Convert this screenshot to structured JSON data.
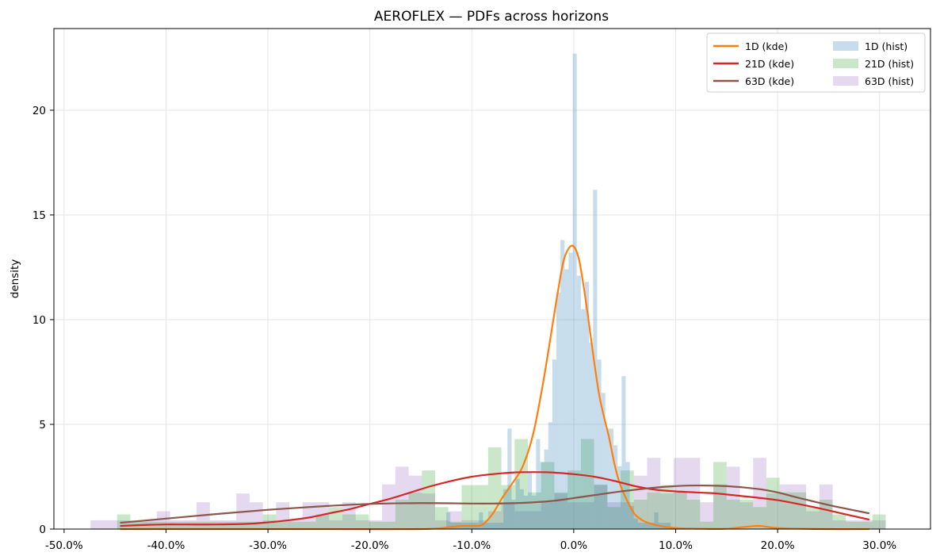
{
  "chart_data": {
    "type": "histogram+line",
    "title": "AEROFLEX — PDFs across horizons",
    "xlabel": "",
    "ylabel": "density",
    "xlim": [
      -0.51,
      0.35
    ],
    "ylim": [
      0,
      23.9
    ],
    "x_ticks": [
      -0.5,
      -0.4,
      -0.3,
      -0.2,
      -0.1,
      0.0,
      0.1,
      0.2,
      0.3
    ],
    "x_tick_labels": [
      "-50.0%",
      "-40.0%",
      "-30.0%",
      "-20.0%",
      "-10.0%",
      "0.0%",
      "10.0%",
      "20.0%",
      "30.0%"
    ],
    "y_ticks": [
      0,
      5,
      10,
      15,
      20
    ],
    "y_tick_labels": [
      "0",
      "5",
      "10",
      "15",
      "20"
    ],
    "grid": true,
    "legend_position": "top-right",
    "legend": [
      "1D (kde)",
      "21D (kde)",
      "63D (kde)",
      "1D (hist)",
      "21D (hist)",
      "63D (hist)"
    ],
    "histograms": [
      {
        "name": "63D (hist)",
        "color": "#9467bd",
        "opacity": 0.25,
        "bins": [
          [
            -0.474,
            -0.461,
            0.42
          ],
          [
            -0.461,
            -0.448,
            0.42
          ],
          [
            -0.448,
            -0.435,
            0.42
          ],
          [
            -0.435,
            -0.422,
            0.42
          ],
          [
            -0.422,
            -0.409,
            0.42
          ],
          [
            -0.409,
            -0.396,
            0.85
          ],
          [
            -0.396,
            -0.383,
            0.42
          ],
          [
            -0.383,
            -0.37,
            0.42
          ],
          [
            -0.37,
            -0.357,
            1.28
          ],
          [
            -0.357,
            -0.344,
            0.42
          ],
          [
            -0.344,
            -0.331,
            0.42
          ],
          [
            -0.331,
            -0.318,
            1.7
          ],
          [
            -0.318,
            -0.305,
            1.28
          ],
          [
            -0.305,
            -0.292,
            0.42
          ],
          [
            -0.292,
            -0.279,
            1.28
          ],
          [
            -0.279,
            -0.266,
            0.42
          ],
          [
            -0.266,
            -0.253,
            1.28
          ],
          [
            -0.253,
            -0.24,
            1.28
          ],
          [
            -0.24,
            -0.227,
            0.42
          ],
          [
            -0.227,
            -0.214,
            1.28
          ],
          [
            -0.214,
            -0.201,
            0.42
          ],
          [
            -0.201,
            -0.188,
            0.42
          ],
          [
            -0.188,
            -0.175,
            2.13
          ],
          [
            -0.175,
            -0.162,
            2.98
          ],
          [
            -0.162,
            -0.149,
            2.55
          ],
          [
            -0.149,
            -0.136,
            1.7
          ],
          [
            -0.136,
            -0.123,
            0.42
          ],
          [
            -0.123,
            -0.11,
            0.85
          ],
          [
            -0.11,
            -0.097,
            0.42
          ],
          [
            -0.097,
            -0.084,
            0.42
          ],
          [
            -0.084,
            -0.071,
            0.85
          ],
          [
            -0.071,
            -0.058,
            1.28
          ],
          [
            -0.058,
            -0.045,
            0.85
          ],
          [
            -0.045,
            -0.032,
            0.85
          ],
          [
            -0.032,
            -0.019,
            1.28
          ],
          [
            -0.019,
            -0.006,
            1.7
          ],
          [
            -0.006,
            0.007,
            1.28
          ],
          [
            0.007,
            0.02,
            1.28
          ],
          [
            0.02,
            0.033,
            2.13
          ],
          [
            0.033,
            0.046,
            1.28
          ],
          [
            0.046,
            0.059,
            1.28
          ],
          [
            0.059,
            0.072,
            2.55
          ],
          [
            0.072,
            0.085,
            3.4
          ],
          [
            0.085,
            0.098,
            1.7
          ],
          [
            0.098,
            0.111,
            3.4
          ],
          [
            0.111,
            0.124,
            3.4
          ],
          [
            0.124,
            0.137,
            1.28
          ],
          [
            0.137,
            0.15,
            2.13
          ],
          [
            0.15,
            0.163,
            2.98
          ],
          [
            0.163,
            0.176,
            1.28
          ],
          [
            0.176,
            0.189,
            3.4
          ],
          [
            0.189,
            0.202,
            1.7
          ],
          [
            0.202,
            0.215,
            2.13
          ],
          [
            0.215,
            0.228,
            2.13
          ],
          [
            0.228,
            0.241,
            0.85
          ],
          [
            0.241,
            0.254,
            2.13
          ],
          [
            0.254,
            0.267,
            0.42
          ],
          [
            0.267,
            0.28,
            0.42
          ],
          [
            0.28,
            0.293,
            0.42
          ],
          [
            0.293,
            0.306,
            0.42
          ]
        ]
      },
      {
        "name": "21D (hist)",
        "color": "#2ca02c",
        "opacity": 0.25,
        "bins": [
          [
            -0.448,
            -0.435,
            0.7
          ],
          [
            -0.435,
            -0.422,
            0.35
          ],
          [
            -0.422,
            -0.409,
            0.35
          ],
          [
            -0.409,
            -0.396,
            0.35
          ],
          [
            -0.396,
            -0.383,
            0.35
          ],
          [
            -0.383,
            -0.37,
            0.35
          ],
          [
            -0.37,
            -0.357,
            0.35
          ],
          [
            -0.357,
            -0.344,
            0.35
          ],
          [
            -0.344,
            -0.331,
            0.35
          ],
          [
            -0.331,
            -0.318,
            0.35
          ],
          [
            -0.318,
            -0.305,
            0.35
          ],
          [
            -0.305,
            -0.292,
            0.7
          ],
          [
            -0.292,
            -0.279,
            0.35
          ],
          [
            -0.279,
            -0.266,
            0.35
          ],
          [
            -0.266,
            -0.253,
            0.35
          ],
          [
            -0.253,
            -0.24,
            0.7
          ],
          [
            -0.24,
            -0.227,
            1.05
          ],
          [
            -0.227,
            -0.214,
            0.7
          ],
          [
            -0.214,
            -0.201,
            0.7
          ],
          [
            -0.201,
            -0.188,
            0.35
          ],
          [
            -0.188,
            -0.175,
            0.35
          ],
          [
            -0.175,
            -0.162,
            1.4
          ],
          [
            -0.162,
            -0.149,
            1.75
          ],
          [
            -0.149,
            -0.136,
            2.8
          ],
          [
            -0.136,
            -0.123,
            1.05
          ],
          [
            -0.123,
            -0.11,
            0.35
          ],
          [
            -0.11,
            -0.097,
            2.1
          ],
          [
            -0.097,
            -0.084,
            2.1
          ],
          [
            -0.084,
            -0.071,
            3.9
          ],
          [
            -0.071,
            -0.058,
            2.1
          ],
          [
            -0.058,
            -0.045,
            4.3
          ],
          [
            -0.045,
            -0.032,
            1.75
          ],
          [
            -0.032,
            -0.019,
            3.2
          ],
          [
            -0.019,
            -0.006,
            1.75
          ],
          [
            -0.006,
            0.007,
            2.8
          ],
          [
            0.007,
            0.02,
            4.3
          ],
          [
            0.02,
            0.033,
            2.1
          ],
          [
            0.033,
            0.046,
            1.05
          ],
          [
            0.046,
            0.059,
            2.8
          ],
          [
            0.059,
            0.072,
            1.4
          ],
          [
            0.072,
            0.085,
            1.75
          ],
          [
            0.085,
            0.098,
            2.1
          ],
          [
            0.098,
            0.111,
            1.75
          ],
          [
            0.111,
            0.124,
            1.4
          ],
          [
            0.124,
            0.137,
            0.35
          ],
          [
            0.137,
            0.15,
            3.2
          ],
          [
            0.15,
            0.163,
            1.4
          ],
          [
            0.163,
            0.176,
            1.4
          ],
          [
            0.176,
            0.189,
            1.05
          ],
          [
            0.189,
            0.202,
            2.45
          ],
          [
            0.202,
            0.215,
            1.75
          ],
          [
            0.215,
            0.228,
            1.75
          ],
          [
            0.228,
            0.241,
            1.05
          ],
          [
            0.241,
            0.254,
            1.4
          ],
          [
            0.254,
            0.267,
            0.7
          ],
          [
            0.267,
            0.28,
            0.35
          ],
          [
            0.28,
            0.293,
            0.35
          ],
          [
            0.293,
            0.306,
            0.7
          ]
        ]
      },
      {
        "name": "1D (hist)",
        "color": "#1f77b4",
        "opacity": 0.25,
        "bins": [
          [
            -0.125,
            -0.121,
            0.8
          ],
          [
            -0.121,
            -0.117,
            0.3
          ],
          [
            -0.117,
            -0.113,
            0.3
          ],
          [
            -0.113,
            -0.109,
            0.3
          ],
          [
            -0.109,
            -0.105,
            0.3
          ],
          [
            -0.105,
            -0.101,
            0.3
          ],
          [
            -0.101,
            -0.097,
            0.3
          ],
          [
            -0.097,
            -0.093,
            0.3
          ],
          [
            -0.093,
            -0.089,
            0.8
          ],
          [
            -0.089,
            -0.085,
            0.3
          ],
          [
            -0.085,
            -0.081,
            0.3
          ],
          [
            -0.081,
            -0.077,
            0.3
          ],
          [
            -0.077,
            -0.073,
            0.3
          ],
          [
            -0.073,
            -0.069,
            0.3
          ],
          [
            -0.069,
            -0.065,
            1.9
          ],
          [
            -0.065,
            -0.061,
            4.8
          ],
          [
            -0.061,
            -0.057,
            1.4
          ],
          [
            -0.057,
            -0.053,
            2.4
          ],
          [
            -0.053,
            -0.049,
            1.9
          ],
          [
            -0.049,
            -0.045,
            1.6
          ],
          [
            -0.045,
            -0.041,
            2.7
          ],
          [
            -0.041,
            -0.037,
            1.6
          ],
          [
            -0.037,
            -0.033,
            4.3
          ],
          [
            -0.033,
            -0.029,
            3.2
          ],
          [
            -0.029,
            -0.025,
            3.8
          ],
          [
            -0.025,
            -0.021,
            5.1
          ],
          [
            -0.021,
            -0.017,
            8.1
          ],
          [
            -0.017,
            -0.013,
            11.3
          ],
          [
            -0.013,
            -0.009,
            13.8
          ],
          [
            -0.009,
            -0.005,
            12.4
          ],
          [
            -0.005,
            -0.001,
            13.2
          ],
          [
            -0.001,
            0.003,
            22.7
          ],
          [
            0.003,
            0.007,
            12.1
          ],
          [
            0.007,
            0.011,
            10.5
          ],
          [
            0.011,
            0.015,
            11.8
          ],
          [
            0.015,
            0.019,
            8.9
          ],
          [
            0.019,
            0.023,
            16.2
          ],
          [
            0.023,
            0.027,
            8.1
          ],
          [
            0.027,
            0.031,
            6.5
          ],
          [
            0.031,
            0.035,
            4.8
          ],
          [
            0.035,
            0.039,
            4.8
          ],
          [
            0.039,
            0.043,
            4.0
          ],
          [
            0.043,
            0.047,
            3.0
          ],
          [
            0.047,
            0.051,
            7.3
          ],
          [
            0.051,
            0.055,
            3.2
          ],
          [
            0.055,
            0.059,
            1.1
          ],
          [
            0.059,
            0.063,
            0.5
          ],
          [
            0.063,
            0.067,
            0.3
          ],
          [
            0.067,
            0.071,
            0.3
          ],
          [
            0.071,
            0.075,
            0.3
          ],
          [
            0.075,
            0.079,
            0.3
          ],
          [
            0.079,
            0.083,
            0.8
          ],
          [
            0.083,
            0.087,
            0.3
          ],
          [
            0.087,
            0.091,
            0.3
          ],
          [
            0.091,
            0.095,
            0.3
          ]
        ]
      }
    ],
    "series": [
      {
        "name": "1D (kde)",
        "color": "#ff7f0e",
        "x": [
          -0.445,
          -0.35,
          -0.25,
          -0.15,
          -0.12,
          -0.11,
          -0.1,
          -0.09,
          -0.08,
          -0.07,
          -0.06,
          -0.05,
          -0.04,
          -0.03,
          -0.02,
          -0.015,
          -0.01,
          -0.005,
          0.0,
          0.005,
          0.01,
          0.015,
          0.02,
          0.025,
          0.03,
          0.035,
          0.04,
          0.045,
          0.05,
          0.055,
          0.06,
          0.065,
          0.07,
          0.08,
          0.09,
          0.1,
          0.12,
          0.15,
          0.18,
          0.2,
          0.25,
          0.29
        ],
        "y": [
          0.0,
          0.0,
          0.0,
          0.0,
          0.1,
          0.15,
          0.15,
          0.2,
          0.7,
          1.5,
          2.2,
          3.0,
          4.5,
          7.0,
          10.0,
          11.5,
          12.8,
          13.4,
          13.5,
          12.9,
          11.5,
          9.8,
          8.0,
          6.4,
          5.3,
          4.3,
          3.1,
          2.2,
          1.6,
          1.1,
          0.7,
          0.5,
          0.35,
          0.2,
          0.1,
          0.05,
          0.02,
          0.02,
          0.15,
          0.05,
          0.0,
          0.0
        ]
      },
      {
        "name": "21D (kde)",
        "color": "#d62728",
        "x": [
          -0.445,
          -0.42,
          -0.4,
          -0.38,
          -0.35,
          -0.32,
          -0.3,
          -0.28,
          -0.26,
          -0.24,
          -0.22,
          -0.2,
          -0.18,
          -0.16,
          -0.14,
          -0.12,
          -0.1,
          -0.08,
          -0.06,
          -0.04,
          -0.02,
          0.0,
          0.02,
          0.04,
          0.06,
          0.08,
          0.1,
          0.12,
          0.14,
          0.16,
          0.18,
          0.2,
          0.22,
          0.24,
          0.26,
          0.29
        ],
        "y": [
          0.15,
          0.2,
          0.22,
          0.22,
          0.22,
          0.25,
          0.32,
          0.42,
          0.55,
          0.75,
          0.95,
          1.2,
          1.45,
          1.75,
          2.05,
          2.3,
          2.5,
          2.62,
          2.7,
          2.72,
          2.7,
          2.62,
          2.5,
          2.3,
          2.05,
          1.88,
          1.8,
          1.75,
          1.7,
          1.6,
          1.5,
          1.38,
          1.2,
          1.0,
          0.78,
          0.45
        ]
      },
      {
        "name": "63D (kde)",
        "color": "#8c564b",
        "x": [
          -0.445,
          -0.4,
          -0.35,
          -0.3,
          -0.25,
          -0.2,
          -0.15,
          -0.1,
          -0.08,
          -0.05,
          -0.02,
          0.0,
          0.02,
          0.05,
          0.08,
          0.1,
          0.12,
          0.15,
          0.18,
          0.2,
          0.22,
          0.25,
          0.29
        ],
        "y": [
          0.3,
          0.5,
          0.72,
          0.92,
          1.08,
          1.2,
          1.24,
          1.22,
          1.22,
          1.25,
          1.35,
          1.48,
          1.62,
          1.82,
          1.98,
          2.05,
          2.08,
          2.05,
          1.92,
          1.75,
          1.5,
          1.15,
          0.75
        ]
      }
    ]
  }
}
